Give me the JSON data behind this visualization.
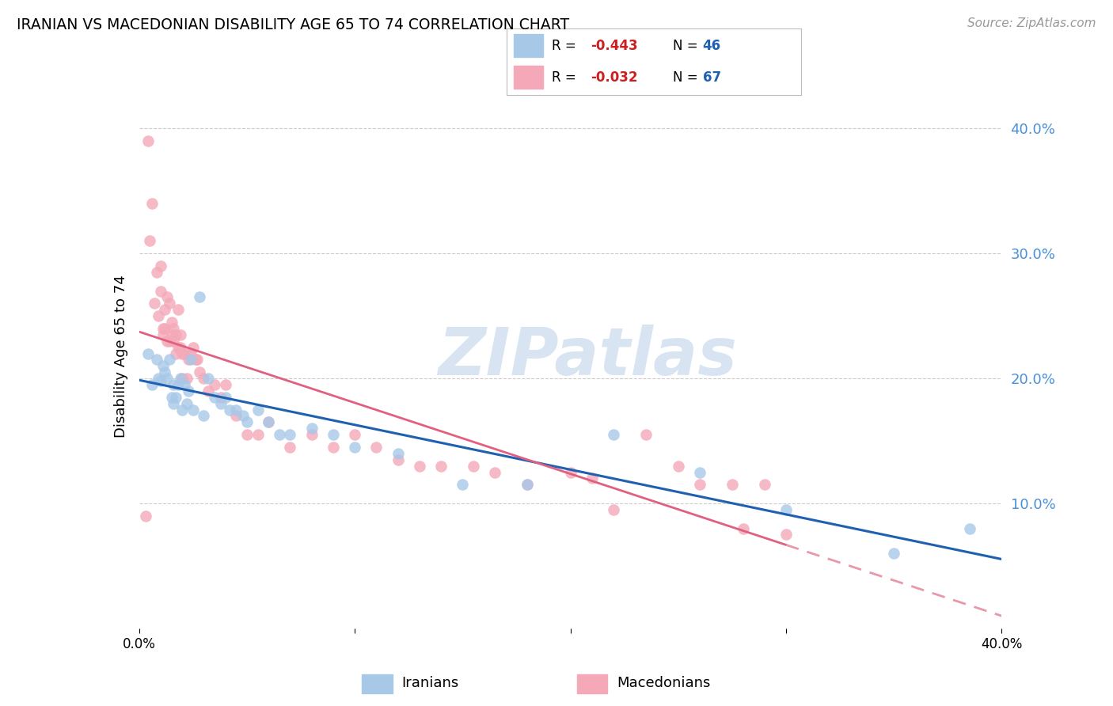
{
  "title": "IRANIAN VS MACEDONIAN DISABILITY AGE 65 TO 74 CORRELATION CHART",
  "source": "Source: ZipAtlas.com",
  "ylabel": "Disability Age 65 to 74",
  "xmin": 0.0,
  "xmax": 0.4,
  "ymin": 0.0,
  "ymax": 0.435,
  "yticks": [
    0.1,
    0.2,
    0.3,
    0.4
  ],
  "ytick_labels": [
    "10.0%",
    "20.0%",
    "30.0%",
    "40.0%"
  ],
  "iranian_color": "#a8c8e8",
  "macedonian_color": "#f4a8b8",
  "iranian_line_color": "#2060b0",
  "macedonian_line_solid_color": "#e06080",
  "macedonian_line_dashed_color": "#e898a8",
  "watermark": "ZIPatlas",
  "iranians_x": [
    0.004,
    0.006,
    0.008,
    0.009,
    0.01,
    0.011,
    0.012,
    0.013,
    0.014,
    0.015,
    0.016,
    0.016,
    0.017,
    0.018,
    0.019,
    0.02,
    0.021,
    0.022,
    0.023,
    0.024,
    0.025,
    0.028,
    0.03,
    0.032,
    0.035,
    0.038,
    0.04,
    0.042,
    0.045,
    0.048,
    0.05,
    0.055,
    0.06,
    0.065,
    0.07,
    0.08,
    0.09,
    0.1,
    0.12,
    0.15,
    0.18,
    0.22,
    0.26,
    0.3,
    0.35,
    0.385
  ],
  "iranians_y": [
    0.22,
    0.195,
    0.215,
    0.2,
    0.198,
    0.21,
    0.205,
    0.2,
    0.215,
    0.185,
    0.195,
    0.18,
    0.185,
    0.195,
    0.2,
    0.175,
    0.195,
    0.18,
    0.19,
    0.215,
    0.175,
    0.265,
    0.17,
    0.2,
    0.185,
    0.18,
    0.185,
    0.175,
    0.175,
    0.17,
    0.165,
    0.175,
    0.165,
    0.155,
    0.155,
    0.16,
    0.155,
    0.145,
    0.14,
    0.115,
    0.115,
    0.155,
    0.125,
    0.095,
    0.06,
    0.08
  ],
  "macedonians_x": [
    0.003,
    0.004,
    0.005,
    0.006,
    0.007,
    0.008,
    0.009,
    0.01,
    0.01,
    0.011,
    0.011,
    0.012,
    0.012,
    0.013,
    0.013,
    0.014,
    0.014,
    0.015,
    0.015,
    0.016,
    0.016,
    0.017,
    0.017,
    0.018,
    0.018,
    0.019,
    0.019,
    0.02,
    0.02,
    0.021,
    0.022,
    0.023,
    0.024,
    0.025,
    0.026,
    0.027,
    0.028,
    0.03,
    0.032,
    0.035,
    0.038,
    0.04,
    0.045,
    0.05,
    0.055,
    0.06,
    0.07,
    0.08,
    0.09,
    0.1,
    0.11,
    0.12,
    0.13,
    0.14,
    0.155,
    0.165,
    0.18,
    0.2,
    0.21,
    0.22,
    0.235,
    0.25,
    0.26,
    0.275,
    0.28,
    0.29,
    0.3
  ],
  "macedonians_y": [
    0.09,
    0.39,
    0.31,
    0.34,
    0.26,
    0.285,
    0.25,
    0.29,
    0.27,
    0.24,
    0.235,
    0.24,
    0.255,
    0.23,
    0.265,
    0.23,
    0.26,
    0.235,
    0.245,
    0.24,
    0.23,
    0.235,
    0.22,
    0.255,
    0.225,
    0.225,
    0.235,
    0.2,
    0.22,
    0.22,
    0.2,
    0.215,
    0.22,
    0.225,
    0.215,
    0.215,
    0.205,
    0.2,
    0.19,
    0.195,
    0.185,
    0.195,
    0.17,
    0.155,
    0.155,
    0.165,
    0.145,
    0.155,
    0.145,
    0.155,
    0.145,
    0.135,
    0.13,
    0.13,
    0.13,
    0.125,
    0.115,
    0.125,
    0.12,
    0.095,
    0.155,
    0.13,
    0.115,
    0.115,
    0.08,
    0.115,
    0.075
  ]
}
